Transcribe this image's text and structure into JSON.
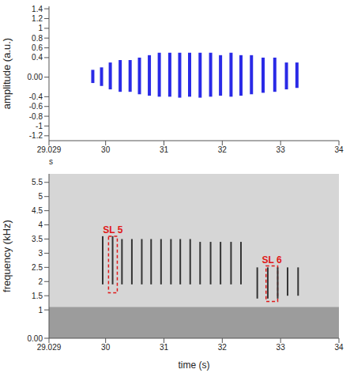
{
  "chart_data": [
    {
      "type": "waveform",
      "y_label": "amplitude (a.u.)",
      "x_label": "s",
      "color": "#2a2ae6",
      "x": [
        29.78,
        29.93,
        30.08,
        30.25,
        30.42,
        30.58,
        30.75,
        30.92,
        31.1,
        31.27,
        31.44,
        31.62,
        31.8,
        31.97,
        32.15,
        32.32,
        32.5,
        32.7,
        32.9,
        33.1,
        33.28
      ],
      "upper": [
        0.15,
        0.2,
        0.3,
        0.35,
        0.35,
        0.4,
        0.45,
        0.5,
        0.5,
        0.5,
        0.5,
        0.5,
        0.5,
        0.45,
        0.5,
        0.45,
        0.45,
        0.4,
        0.4,
        0.3,
        0.3
      ],
      "lower": [
        -0.12,
        -0.18,
        -0.25,
        -0.3,
        -0.3,
        -0.35,
        -0.38,
        -0.4,
        -0.4,
        -0.42,
        -0.4,
        -0.42,
        -0.4,
        -0.38,
        -0.4,
        -0.38,
        -0.35,
        -0.32,
        -0.3,
        -0.25,
        -0.22
      ],
      "xlim": [
        29.029,
        34
      ],
      "xticks": [
        29.029,
        30,
        31,
        32,
        33,
        34
      ],
      "ylim": [
        -1.3,
        1.45
      ],
      "yticks": [
        -1.2,
        -1,
        -0.8,
        -0.6,
        -0.4,
        {
          "value": 0,
          "label": "0.00"
        },
        0.4,
        0.6,
        0.8,
        1,
        1.2,
        1.4
      ],
      "grid": false
    },
    {
      "type": "spectrogram",
      "x_label": "time (s)",
      "y_label": "frequency (kHz)",
      "color": "#333333",
      "x": [
        29.95,
        30.12,
        30.28,
        30.45,
        30.62,
        30.78,
        30.95,
        31.12,
        31.28,
        31.45,
        31.62,
        31.8,
        31.97,
        32.15,
        32.32,
        32.6,
        32.78,
        32.95,
        33.12,
        33.3
      ],
      "low": [
        1.9,
        1.9,
        1.9,
        1.9,
        1.9,
        1.9,
        1.9,
        1.9,
        1.9,
        1.9,
        1.9,
        1.9,
        1.9,
        1.9,
        1.9,
        1.4,
        1.4,
        1.4,
        1.5,
        1.5
      ],
      "high": [
        3.6,
        3.6,
        3.5,
        3.5,
        3.5,
        3.5,
        3.5,
        3.5,
        3.5,
        3.5,
        3.4,
        3.4,
        3.4,
        3.4,
        3.4,
        2.5,
        2.5,
        2.5,
        2.5,
        2.5
      ],
      "noise_band": {
        "low": 0,
        "high": 1.1
      },
      "annotations": [
        {
          "text": "SL 5",
          "x": [
            30.05,
            30.2
          ],
          "y": [
            1.6,
            3.6
          ]
        },
        {
          "text": "SL 6",
          "x": [
            32.75,
            32.95
          ],
          "y": [
            1.3,
            2.55
          ]
        }
      ],
      "xlim": [
        29.029,
        34
      ],
      "xticks": [
        29.029,
        30,
        31,
        32,
        33,
        34
      ],
      "ylim": [
        0,
        5.8
      ],
      "yticks": [
        {
          "value": 0,
          "label": "0.00"
        },
        1,
        1.5,
        2,
        2.5,
        3,
        3.5,
        4,
        4.5,
        5,
        5.5
      ],
      "grid": false
    }
  ]
}
